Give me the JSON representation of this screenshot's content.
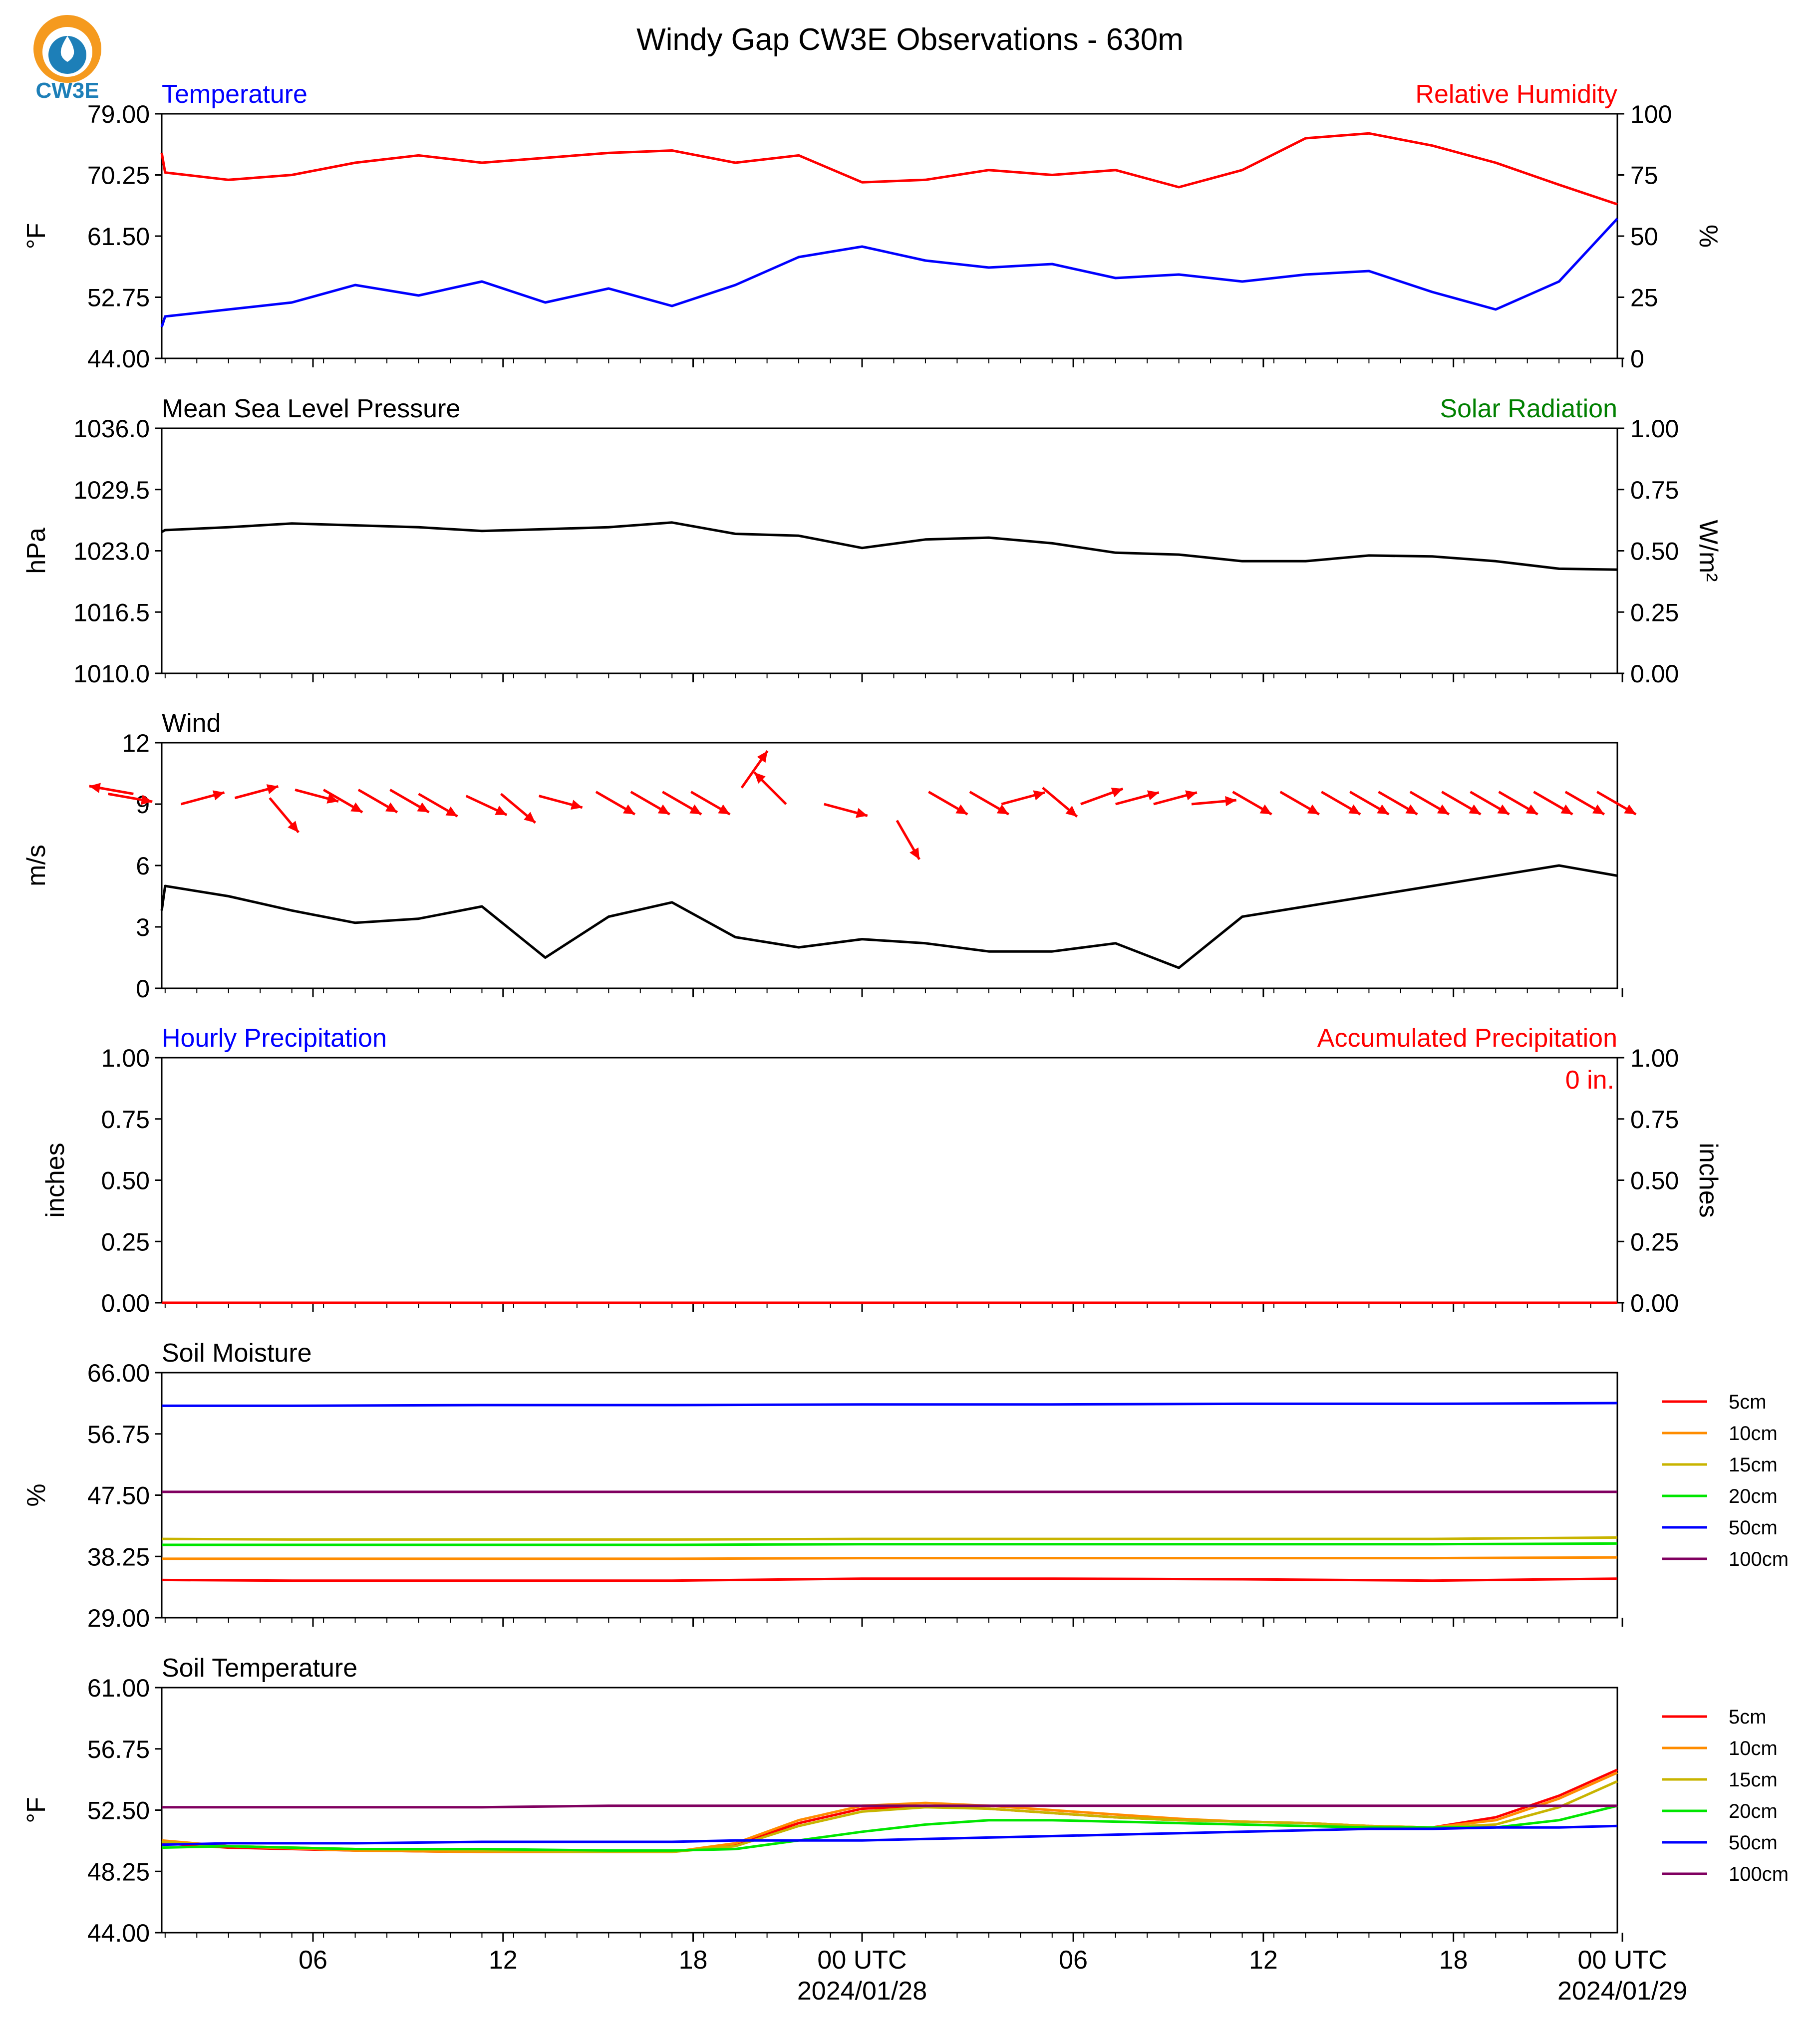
{
  "figure": {
    "title": "Windy Gap CW3E Observations - 630m",
    "logo_text": "CW3E",
    "x_ticks": [
      "06",
      "12",
      "18",
      "00 UTC",
      "06",
      "12",
      "18",
      "00 UTC"
    ],
    "x_dates": [
      "2024/01/28",
      "2024/01/29"
    ]
  },
  "colors": {
    "temperature": "#0000ff",
    "humidity": "#ff0000",
    "pressure": "#000000",
    "solar": "#008000",
    "wind": "#000000",
    "wind_barb": "#ff0000",
    "precip_hourly": "#0000ff",
    "precip_accum": "#ff0000",
    "depth_5cm": "#ff0000",
    "depth_10cm": "#ff8c00",
    "depth_15cm": "#c8b400",
    "depth_20cm": "#00e600",
    "depth_50cm": "#0000ff",
    "depth_100cm": "#800060"
  },
  "chart_data": [
    {
      "type": "line",
      "title_left": "Temperature",
      "title_right": "Relative Humidity",
      "ylabel_left": "°F",
      "ylabel_right": "%",
      "yticks_left": [
        "79.00",
        "70.25",
        "61.50",
        "52.75",
        "44.00"
      ],
      "yticks_right": [
        "100",
        "75",
        "50",
        "25",
        "0"
      ],
      "ylim_left": [
        44,
        79
      ],
      "ylim_right": [
        0,
        100
      ],
      "x_hours": [
        0,
        2,
        4,
        6,
        8,
        10,
        12,
        14,
        16,
        18,
        20,
        22,
        24,
        26,
        28,
        30,
        32,
        34,
        36,
        38,
        40,
        42,
        44,
        46,
        48
      ],
      "series": [
        {
          "name": "Temperature",
          "axis": "left",
          "values": [
            48.5,
            50.0,
            51.0,
            52.0,
            54.5,
            53.0,
            55.0,
            52.0,
            54.0,
            51.5,
            54.5,
            58.5,
            60.0,
            58.0,
            57.0,
            57.5,
            55.5,
            56.0,
            55.0,
            56.0,
            56.5,
            53.5,
            51.0,
            55.0,
            64.0
          ]
        },
        {
          "name": "Relative Humidity",
          "axis": "right",
          "values": [
            84,
            76,
            73,
            75,
            80,
            83,
            80,
            82,
            84,
            85,
            80,
            83,
            72,
            73,
            77,
            75,
            77,
            70,
            77,
            90,
            92,
            87,
            80,
            71,
            63
          ]
        }
      ]
    },
    {
      "type": "line",
      "title_left": "Mean Sea Level Pressure",
      "title_right": "Solar Radiation",
      "ylabel_left": "hPa",
      "ylabel_right": "W/m²",
      "yticks_left": [
        "1036.0",
        "1029.5",
        "1023.0",
        "1016.5",
        "1010.0"
      ],
      "yticks_right": [
        "1.00",
        "0.75",
        "0.50",
        "0.25",
        "0.00"
      ],
      "ylim_left": [
        1010,
        1036
      ],
      "ylim_right": [
        0,
        1
      ],
      "x_hours": [
        0,
        2,
        4,
        6,
        8,
        10,
        12,
        14,
        16,
        18,
        20,
        22,
        24,
        26,
        28,
        30,
        32,
        34,
        36,
        38,
        40,
        42,
        44,
        46,
        48
      ],
      "series": [
        {
          "name": "Mean Sea Level Pressure",
          "axis": "left",
          "values": [
            1025.0,
            1025.2,
            1025.5,
            1025.9,
            1025.7,
            1025.5,
            1025.1,
            1025.3,
            1025.5,
            1026.0,
            1024.8,
            1024.6,
            1023.3,
            1024.2,
            1024.4,
            1023.8,
            1022.8,
            1022.6,
            1021.9,
            1021.9,
            1022.5,
            1022.4,
            1021.9,
            1021.1,
            1021.0
          ]
        }
      ]
    },
    {
      "type": "line",
      "title_left": "Wind",
      "ylabel_left": "m/s",
      "yticks_left": [
        "12",
        "9",
        "6",
        "3",
        "0"
      ],
      "ylim_left": [
        0,
        12
      ],
      "x_hours": [
        0,
        2,
        4,
        6,
        8,
        10,
        12,
        14,
        16,
        18,
        20,
        22,
        24,
        26,
        28,
        30,
        32,
        34,
        36,
        38,
        40,
        42,
        44,
        46,
        48
      ],
      "series": [
        {
          "name": "Wind speed",
          "axis": "left",
          "values": [
            3.8,
            5.0,
            4.5,
            3.8,
            3.2,
            3.4,
            4.0,
            1.5,
            3.5,
            4.2,
            2.5,
            2.0,
            2.4,
            2.2,
            1.8,
            1.8,
            2.2,
            1.0,
            3.5,
            4.0,
            4.5,
            5.0,
            5.5,
            6.0,
            5.5
          ]
        }
      ],
      "barbs": {
        "x_hours": [
          0.2,
          1.0,
          2.5,
          4.2,
          5.3,
          6.1,
          7.0,
          8.1,
          9.1,
          10.0,
          11.5,
          12.6,
          13.8,
          15.6,
          16.7,
          17.7,
          18.6,
          20.2,
          21.6,
          22.8,
          25.1,
          26.1,
          27.4,
          28.4,
          29.7,
          30.9,
          32.0,
          33.2,
          34.4,
          35.7,
          37.2,
          38.5,
          39.4,
          40.3,
          41.3,
          42.3,
          43.2,
          44.1,
          45.2,
          46.2,
          47.2
        ],
        "y_mps": [
          9.5,
          9.5,
          9.0,
          9.3,
          9.3,
          9.7,
          9.7,
          9.7,
          9.7,
          9.5,
          9.4,
          9.5,
          9.4,
          9.6,
          9.6,
          9.6,
          9.6,
          9.8,
          9.0,
          9.0,
          8.2,
          9.6,
          9.6,
          9.0,
          9.8,
          9.0,
          9.0,
          9.0,
          9.0,
          9.6,
          9.6,
          9.6,
          9.6,
          9.6,
          9.6,
          9.6,
          9.6,
          9.6,
          9.6,
          9.6,
          9.6
        ],
        "dir_deg": [
          280,
          100,
          255,
          255,
          320,
          285,
          300,
          300,
          300,
          300,
          295,
          310,
          285,
          300,
          300,
          300,
          300,
          215,
          135,
          285,
          330,
          300,
          300,
          255,
          310,
          250,
          255,
          255,
          265,
          300,
          300,
          300,
          300,
          300,
          300,
          300,
          300,
          300,
          300,
          300,
          300
        ],
        "speed": [
          6,
          5,
          5,
          5,
          5,
          5,
          5,
          5,
          5,
          6,
          5,
          6,
          5,
          5,
          5,
          5,
          5,
          5,
          6,
          5,
          5,
          5,
          5,
          6,
          5,
          5,
          5,
          5,
          5,
          5,
          5,
          5,
          5,
          5,
          5,
          5,
          5,
          5,
          5,
          5,
          5
        ]
      }
    },
    {
      "type": "line",
      "title_left": "Hourly Precipitation",
      "title_right": "Accumulated Precipitation",
      "ylabel_left": "inches",
      "ylabel_right": "inches",
      "yticks_left": [
        "1.00",
        "0.75",
        "0.50",
        "0.25",
        "0.00"
      ],
      "yticks_right": [
        "1.00",
        "0.75",
        "0.50",
        "0.25",
        "0.00"
      ],
      "ylim_left": [
        0,
        1
      ],
      "ylim_right": [
        0,
        1
      ],
      "annotation": "0 in.",
      "x_hours": [
        0,
        48
      ],
      "series": [
        {
          "name": "Hourly Precipitation",
          "axis": "left",
          "values": [
            0,
            0
          ]
        },
        {
          "name": "Accumulated Precipitation",
          "axis": "right",
          "values": [
            0,
            0
          ]
        }
      ]
    },
    {
      "type": "line",
      "title_left": "Soil Moisture",
      "ylabel_left": "%",
      "yticks_left": [
        "66.00",
        "56.75",
        "47.50",
        "38.25",
        "29.00"
      ],
      "ylim_left": [
        29,
        66
      ],
      "x_hours": [
        0,
        6,
        12,
        18,
        24,
        30,
        36,
        42,
        48
      ],
      "series": [
        {
          "name": "5cm",
          "axis": "left",
          "values": [
            34.7,
            34.6,
            34.6,
            34.6,
            34.9,
            34.9,
            34.8,
            34.6,
            34.9
          ]
        },
        {
          "name": "10cm",
          "axis": "left",
          "values": [
            37.9,
            37.9,
            37.9,
            37.9,
            38.0,
            38.0,
            38.0,
            38.0,
            38.1
          ]
        },
        {
          "name": "15cm",
          "axis": "left",
          "values": [
            40.9,
            40.8,
            40.8,
            40.8,
            40.9,
            40.9,
            40.9,
            40.9,
            41.1
          ]
        },
        {
          "name": "20cm",
          "axis": "left",
          "values": [
            40.0,
            40.0,
            40.0,
            40.0,
            40.1,
            40.1,
            40.1,
            40.1,
            40.2
          ]
        },
        {
          "name": "50cm",
          "axis": "left",
          "values": [
            61.0,
            61.0,
            61.1,
            61.1,
            61.2,
            61.2,
            61.3,
            61.3,
            61.4
          ]
        },
        {
          "name": "100cm",
          "axis": "left",
          "values": [
            48.0,
            48.0,
            48.0,
            48.0,
            48.0,
            48.0,
            48.0,
            48.0,
            48.0
          ]
        }
      ]
    },
    {
      "type": "line",
      "title_left": "Soil Temperature",
      "ylabel_left": "°F",
      "yticks_left": [
        "61.00",
        "56.75",
        "52.50",
        "48.25",
        "44.00"
      ],
      "ylim_left": [
        44,
        61
      ],
      "x_hours": [
        0,
        4,
        8,
        12,
        16,
        18,
        20,
        22,
        24,
        26,
        28,
        30,
        32,
        34,
        36,
        38,
        40,
        42,
        44,
        46,
        48
      ],
      "series": [
        {
          "name": "5cm",
          "axis": "left",
          "values": [
            50.2,
            49.9,
            49.7,
            49.6,
            49.6,
            49.6,
            50.1,
            51.6,
            52.6,
            52.8,
            52.6,
            52.3,
            52.0,
            51.8,
            51.7,
            51.6,
            51.4,
            51.3,
            52.0,
            53.5,
            55.3
          ]
        },
        {
          "name": "10cm",
          "axis": "left",
          "values": [
            50.4,
            50.0,
            49.7,
            49.6,
            49.6,
            49.6,
            50.2,
            51.8,
            52.8,
            53.0,
            52.8,
            52.5,
            52.2,
            51.9,
            51.7,
            51.6,
            51.4,
            51.3,
            51.8,
            53.3,
            55.1
          ]
        },
        {
          "name": "15cm",
          "axis": "left",
          "values": [
            50.3,
            50.0,
            49.8,
            49.7,
            49.6,
            49.6,
            50.0,
            51.4,
            52.4,
            52.7,
            52.6,
            52.3,
            52.0,
            51.8,
            51.7,
            51.6,
            51.4,
            51.3,
            51.5,
            52.7,
            54.5
          ]
        },
        {
          "name": "20cm",
          "axis": "left",
          "values": [
            49.9,
            50.0,
            49.8,
            49.8,
            49.7,
            49.7,
            49.8,
            50.4,
            51.0,
            51.5,
            51.8,
            51.8,
            51.7,
            51.6,
            51.5,
            51.4,
            51.3,
            51.3,
            51.3,
            51.8,
            52.8
          ]
        },
        {
          "name": "50cm",
          "axis": "left",
          "values": [
            50.1,
            50.2,
            50.2,
            50.3,
            50.3,
            50.3,
            50.4,
            50.4,
            50.4,
            50.5,
            50.6,
            50.7,
            50.8,
            50.9,
            51.0,
            51.1,
            51.2,
            51.2,
            51.3,
            51.3,
            51.4
          ]
        },
        {
          "name": "100cm",
          "axis": "left",
          "values": [
            52.7,
            52.7,
            52.7,
            52.7,
            52.8,
            52.8,
            52.8,
            52.8,
            52.8,
            52.8,
            52.8,
            52.8,
            52.8,
            52.8,
            52.8,
            52.8,
            52.8,
            52.8,
            52.8,
            52.8,
            52.8
          ]
        }
      ]
    }
  ]
}
